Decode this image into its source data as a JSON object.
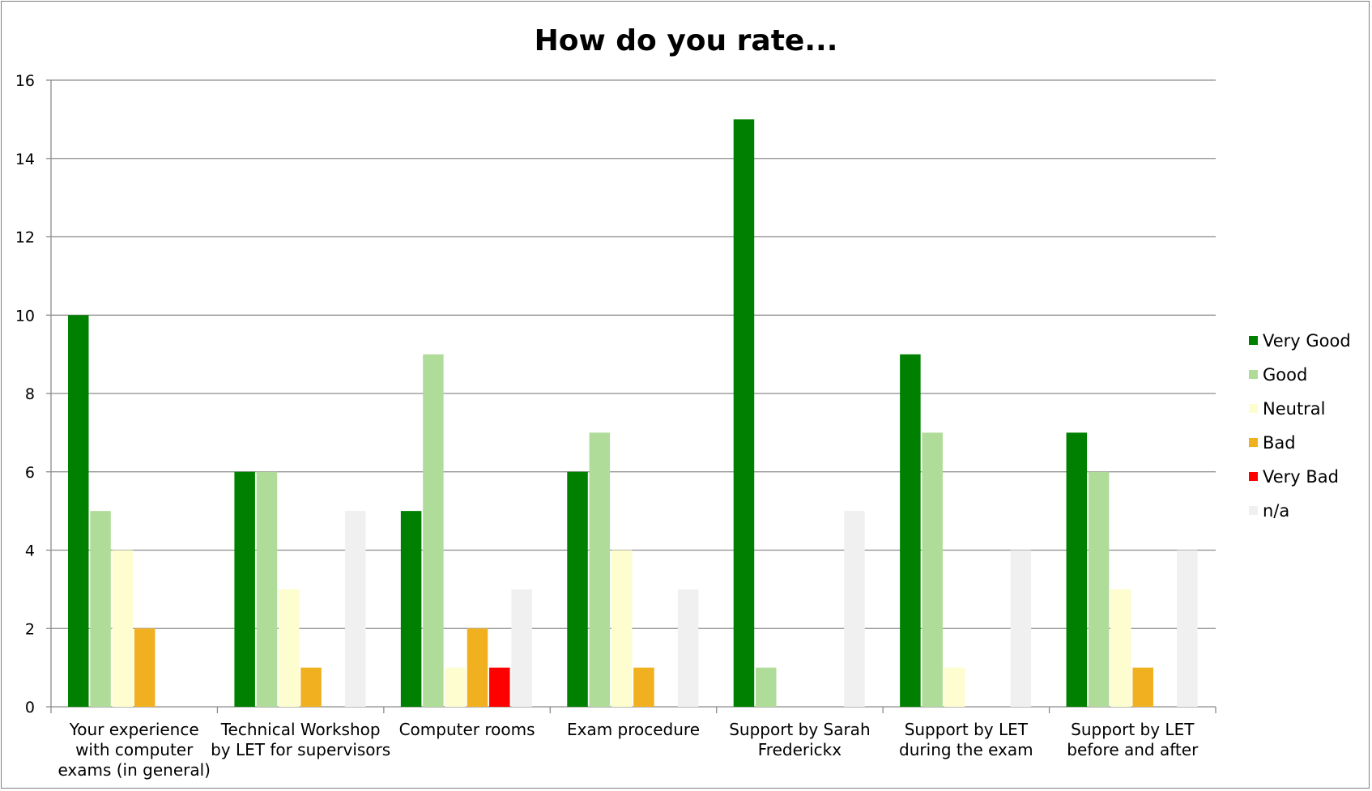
{
  "chart_data": {
    "type": "bar",
    "title": "How do you rate...",
    "categories": [
      [
        "Your experience",
        "with computer",
        "exams (in general)"
      ],
      [
        "Technical Workshop",
        "by LET for supervisors"
      ],
      [
        "Computer rooms"
      ],
      [
        "Exam procedure"
      ],
      [
        "Support by Sarah",
        "Frederickx"
      ],
      [
        "Support by LET",
        "during the exam"
      ],
      [
        "Support by LET",
        "before and after"
      ]
    ],
    "series": [
      {
        "name": "Very Good",
        "color": "#008000",
        "values": [
          10,
          6,
          5,
          6,
          15,
          9,
          7
        ]
      },
      {
        "name": "Good",
        "color": "#b0dc9a",
        "values": [
          5,
          6,
          9,
          7,
          1,
          7,
          6
        ]
      },
      {
        "name": "Neutral",
        "color": "#fdfdd0",
        "values": [
          4,
          3,
          1,
          4,
          0,
          1,
          3
        ]
      },
      {
        "name": "Bad",
        "color": "#f0b020",
        "values": [
          2,
          1,
          2,
          1,
          0,
          0,
          1
        ]
      },
      {
        "name": "Very Bad",
        "color": "#ff0000",
        "values": [
          0,
          0,
          1,
          0,
          0,
          0,
          0
        ]
      },
      {
        "name": "n/a",
        "color": "#f0f0f0",
        "values": [
          0,
          5,
          3,
          3,
          5,
          4,
          4
        ]
      }
    ],
    "ylim": [
      0,
      16
    ],
    "yticks": [
      0,
      2,
      4,
      6,
      8,
      10,
      12,
      14,
      16
    ],
    "grid": true,
    "legend": "right"
  }
}
